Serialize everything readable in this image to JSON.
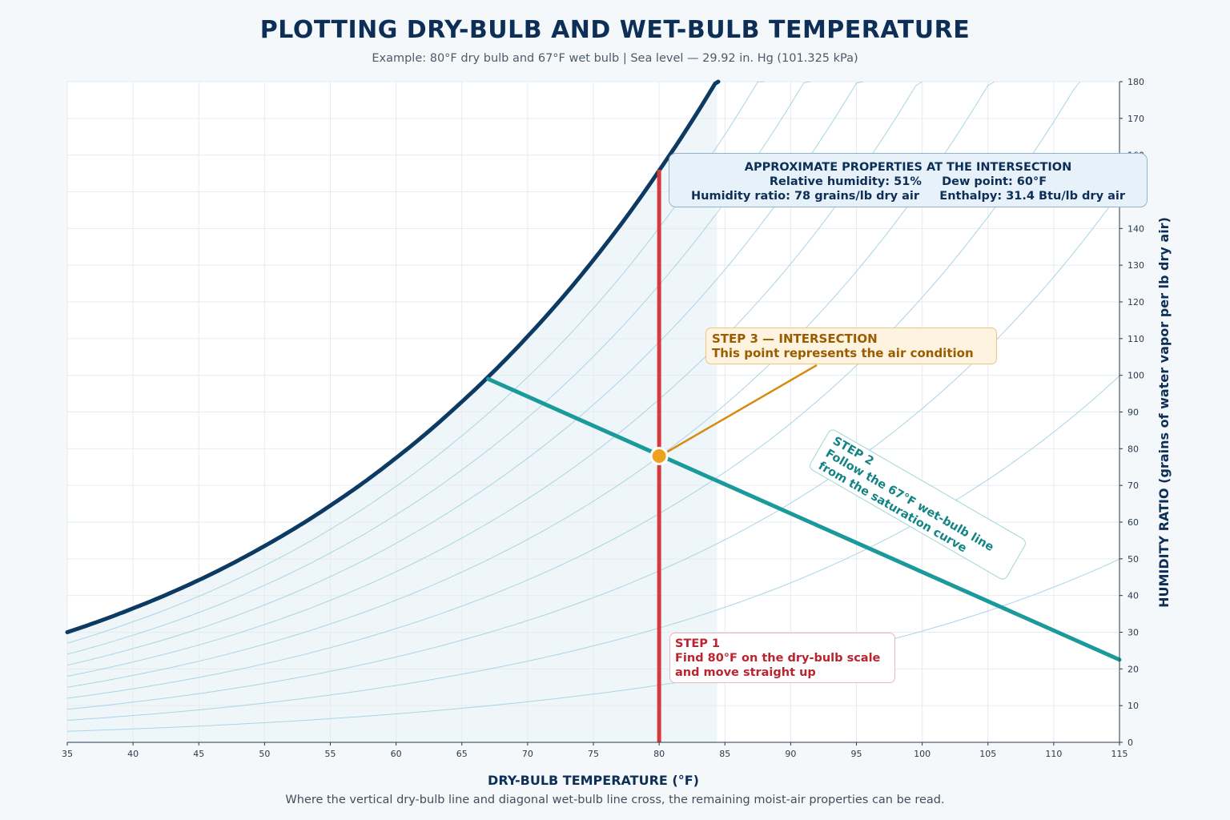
{
  "header": {
    "title": "PLOTTING DRY-BULB AND WET-BULB TEMPERATURE",
    "subtitle": "Example: 80°F dry bulb and 67°F wet bulb  |  Sea level — 29.92 in. Hg (101.325 kPa)"
  },
  "footnote": "Where the vertical dry-bulb line and diagonal wet-bulb line cross, the remaining moist-air properties can be read.",
  "properties_box": {
    "heading": "APPROXIMATE PROPERTIES AT THE INTERSECTION",
    "line1": "Relative humidity: 51%     Dew point: 60°F",
    "line2": "Humidity ratio: 78 grains/lb dry air     Enthalpy: 31.4 Btu/lb dry air"
  },
  "step1": {
    "line1": "STEP 1",
    "line2": "Find 80°F on the dry-bulb scale",
    "line3": "and move straight up"
  },
  "step2": {
    "line1": "STEP 2",
    "line2": "Follow the 67°F wet-bulb line",
    "line3": "from the saturation curve"
  },
  "step3": {
    "line1": "STEP 3 — INTERSECTION",
    "line2": "This point represents the air condition"
  },
  "colors": {
    "saturation": "#0d3a63",
    "rh_curves": "#a9d4e6",
    "dry_bulb_line": "#d63a3f",
    "wet_bulb_line": "#1a9a9a",
    "intersection": "#f0a020",
    "leader": "#d98a10",
    "grid": "#e6ebef",
    "shade": "#eef6fa"
  },
  "chart_data": {
    "type": "line",
    "title": "PLOTTING DRY-BULB AND WET-BULB TEMPERATURE",
    "xlabel": "DRY-BULB TEMPERATURE (°F)",
    "ylabel": "HUMIDITY RATIO (grains of water vapor per lb dry air)",
    "xlim": [
      35,
      115
    ],
    "ylim": [
      0,
      180
    ],
    "x_ticks": [
      35,
      40,
      45,
      50,
      55,
      60,
      65,
      70,
      75,
      80,
      85,
      90,
      95,
      100,
      105,
      110,
      115
    ],
    "y_ticks": [
      0,
      10,
      20,
      30,
      40,
      50,
      60,
      70,
      80,
      90,
      100,
      110,
      120,
      130,
      140,
      150,
      160,
      170,
      180
    ],
    "y_axis_side": "right",
    "grid": true,
    "relative_humidity_curves": [
      0.1,
      0.2,
      0.3,
      0.4,
      0.5,
      0.6,
      0.7,
      0.8,
      0.9
    ],
    "series": [
      {
        "role": "saturation-curve",
        "x": [
          35,
          40,
          45,
          50,
          55,
          60,
          65,
          70,
          75,
          80,
          85
        ],
        "y": [
          30,
          36.5,
          44.2,
          53.5,
          64.5,
          77.5,
          92.8,
          110.6,
          131.4,
          155.8,
          184
        ]
      },
      {
        "role": "dry-bulb-line",
        "x": [
          80,
          80
        ],
        "y": [
          0,
          156
        ]
      },
      {
        "role": "wet-bulb-line",
        "x": [
          67,
          115
        ],
        "y": [
          99,
          22.5
        ]
      }
    ],
    "intersection": {
      "x": 80,
      "y": 78
    }
  }
}
